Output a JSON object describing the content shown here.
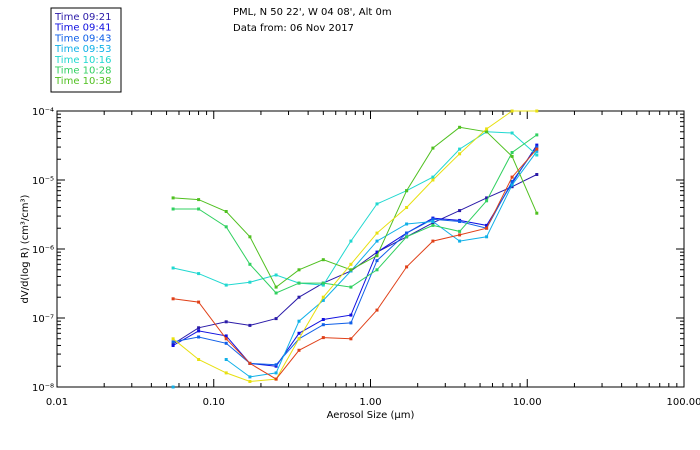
{
  "header": {
    "line1": "PML, N 50 22', W 04 08', Alt 0m",
    "line2": "Data from: 06 Nov 2017"
  },
  "chart_data": {
    "type": "line",
    "title": "",
    "xlabel": "Aerosol Size (μm)",
    "ylabel": "dV/d(log R) (cm³/cm³)",
    "xscale": "log",
    "yscale": "log",
    "xlim": [
      0.01,
      100
    ],
    "ylim": [
      1e-08,
      0.0001
    ],
    "legend_position": "top-left-outside",
    "grid": false,
    "x_tick_labels": [
      "0.01",
      "0.10",
      "1.00",
      "10.00",
      "100.00"
    ],
    "y_tick_labels": [
      "10⁻⁸",
      "10⁻⁷",
      "10⁻⁶",
      "10⁻⁵",
      "10⁻⁴"
    ],
    "x": [
      0.055,
      0.08,
      0.12,
      0.17,
      0.25,
      0.35,
      0.5,
      0.75,
      1.1,
      1.7,
      2.5,
      3.7,
      5.5,
      8.0,
      11.5
    ],
    "series": [
      {
        "name": "Time 09:21",
        "color": "#2a1aa8",
        "values": [
          4.2e-08,
          7.2e-08,
          8.8e-08,
          7.8e-08,
          9.8e-08,
          2e-07,
          3.2e-07,
          4.8e-07,
          9e-07,
          1.5e-06,
          2.4e-06,
          3.6e-06,
          5.5e-06,
          8e-06,
          1.2e-05
        ]
      },
      {
        "name": "Time 09:41",
        "color": "#1010e0",
        "values": [
          4e-08,
          6.5e-08,
          5.5e-08,
          2.2e-08,
          2e-08,
          6e-08,
          9.5e-08,
          1.1e-07,
          9e-07,
          1.7e-06,
          2.8e-06,
          2.6e-06,
          2.2e-06,
          9e-06,
          3.2e-05
        ]
      },
      {
        "name": "Time 09:43",
        "color": "#1060e8",
        "values": [
          4.5e-08,
          5.3e-08,
          4.3e-08,
          2.2e-08,
          2.1e-08,
          5e-08,
          8e-08,
          8.5e-08,
          6.8e-07,
          1.7e-06,
          2.7e-06,
          2.5e-06,
          2e-06,
          9.5e-06,
          3e-05
        ]
      },
      {
        "name": "Time 09:53",
        "color": "#10b0e8",
        "values": [
          1e-08,
          null,
          2.5e-08,
          1.4e-08,
          1.6e-08,
          9e-08,
          1.8e-07,
          4.8e-07,
          1.3e-06,
          2.3e-06,
          2.5e-06,
          1.3e-06,
          1.5e-06,
          8.5e-06,
          2.6e-05
        ]
      },
      {
        "name": "Time 10:16",
        "color": "#20d8d0",
        "values": [
          5.3e-07,
          4.4e-07,
          3e-07,
          3.3e-07,
          4.2e-07,
          3.2e-07,
          3e-07,
          1.3e-06,
          4.5e-06,
          7e-06,
          1.1e-05,
          2.8e-05,
          5e-05,
          4.8e-05,
          2.3e-05
        ]
      },
      {
        "name": "Time 10:28",
        "color": "#30d060",
        "values": [
          3.8e-06,
          3.8e-06,
          2.1e-06,
          6e-07,
          2.3e-07,
          3.2e-07,
          3.2e-07,
          2.8e-07,
          5e-07,
          1.5e-06,
          2.2e-06,
          1.8e-06,
          5e-06,
          2.5e-05,
          4.5e-05
        ]
      },
      {
        "name": "Time 10:38",
        "color": "#50c020",
        "values": [
          5.5e-06,
          5.2e-06,
          3.5e-06,
          1.5e-06,
          2.8e-07,
          5e-07,
          7e-07,
          5e-07,
          8e-07,
          7e-06,
          2.9e-05,
          5.8e-05,
          5e-05,
          2.2e-05,
          3.3e-06
        ]
      },
      {
        "color": "#e8e010",
        "values": [
          5e-08,
          2.5e-08,
          1.6e-08,
          1.2e-08,
          1.3e-08,
          5e-08,
          2e-07,
          6e-07,
          1.7e-06,
          4e-06,
          1e-05,
          2.4e-05,
          5.5e-05,
          0.0001,
          0.0001
        ]
      },
      {
        "color": "#e04018",
        "values": [
          1.9e-07,
          1.7e-07,
          5e-08,
          2.2e-08,
          1.3e-08,
          3.4e-08,
          5.2e-08,
          5e-08,
          1.3e-07,
          5.5e-07,
          1.3e-06,
          1.6e-06,
          2e-06,
          1.1e-05,
          2.8e-05
        ]
      }
    ]
  }
}
